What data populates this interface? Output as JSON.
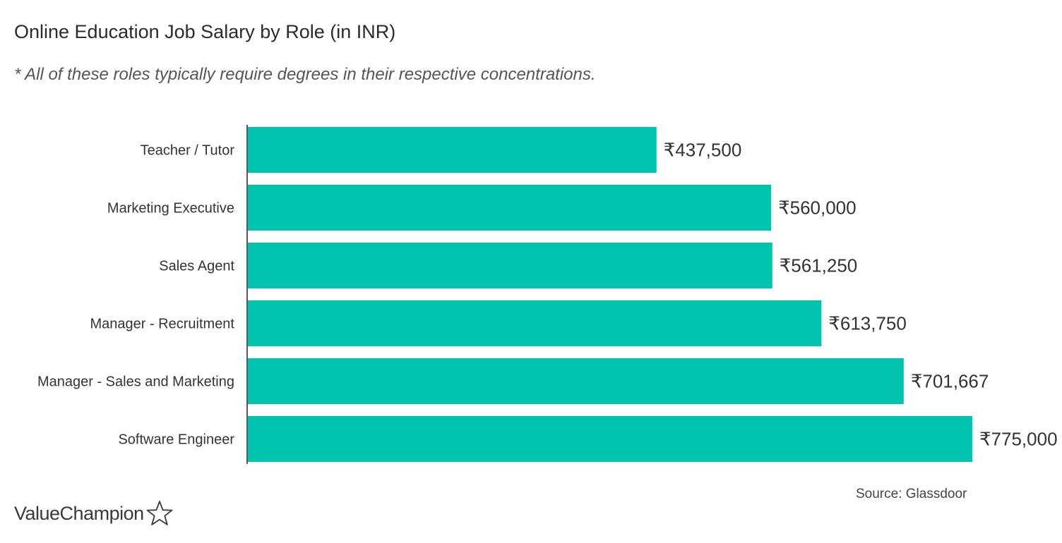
{
  "title": "Online Education Job Salary by Role (in INR)",
  "subtitle": "* All of these roles typically require degrees in their respective concentrations.",
  "source": "Source: Glassdoor",
  "brand": "ValueChampion",
  "colors": {
    "bar": "#00C4AE",
    "axis": "#222222",
    "label": "#333333"
  },
  "chart_data": {
    "type": "bar",
    "orientation": "horizontal",
    "categories": [
      "Teacher / Tutor",
      "Marketing Executive",
      "Sales Agent",
      "Manager - Recruitment",
      "Manager - Sales and Marketing",
      "Software Engineer"
    ],
    "values": [
      437500,
      560000,
      561250,
      613750,
      701667,
      775000
    ],
    "data_labels": [
      "₹437,500",
      "₹560,000",
      "₹561,250",
      "₹613,750",
      "₹701,667",
      "₹775,000"
    ],
    "xlim": [
      0,
      775000
    ],
    "grid": false,
    "legend": "none"
  }
}
